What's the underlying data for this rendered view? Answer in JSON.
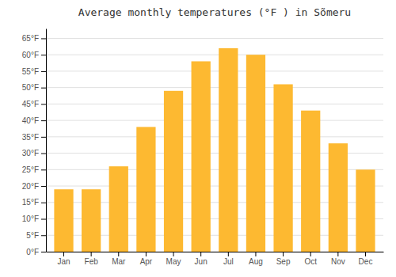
{
  "chart_data": {
    "type": "bar",
    "title": "Average monthly temperatures (°F ) in Sõmeru",
    "categories": [
      "Jan",
      "Feb",
      "Mar",
      "Apr",
      "May",
      "Jun",
      "Jul",
      "Aug",
      "Sep",
      "Oct",
      "Nov",
      "Dec"
    ],
    "values": [
      19,
      19,
      26,
      38,
      49,
      58,
      62,
      60,
      51,
      43,
      33,
      25
    ],
    "color": "#FDB931",
    "ylim": [
      0,
      68
    ],
    "yticks": [
      {
        "value": 0,
        "label": "0°F"
      },
      {
        "value": 5,
        "label": "5°F"
      },
      {
        "value": 10,
        "label": "10°F"
      },
      {
        "value": 15,
        "label": "15°F"
      },
      {
        "value": 20,
        "label": "20°F"
      },
      {
        "value": 25,
        "label": "25°F"
      },
      {
        "value": 30,
        "label": "30°F"
      },
      {
        "value": 35,
        "label": "35°F"
      },
      {
        "value": 40,
        "label": "40°F"
      },
      {
        "value": 45,
        "label": "45°F"
      },
      {
        "value": 50,
        "label": "50°F"
      },
      {
        "value": 55,
        "label": "55°F"
      },
      {
        "value": 60,
        "label": "60°F"
      },
      {
        "value": 65,
        "label": "65°F"
      }
    ],
    "grid": true
  }
}
